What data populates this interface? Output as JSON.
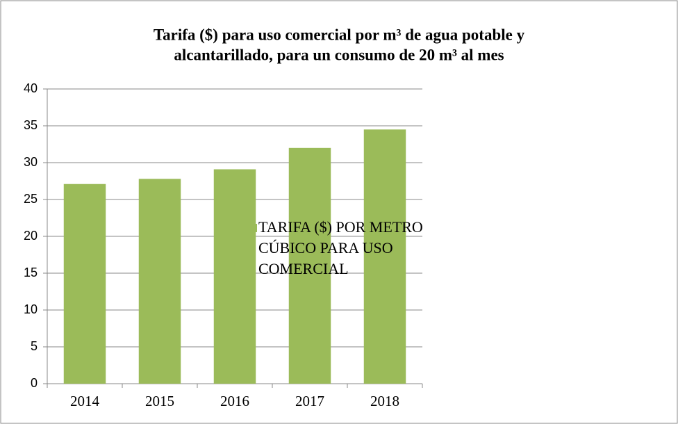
{
  "chart_data": {
    "type": "bar",
    "title": [
      "Tarifa ($) para uso comercial por m³ de agua potable y",
      "alcantarillado, para un consumo de 20 m³ al mes"
    ],
    "categories": [
      "2014",
      "2015",
      "2016",
      "2017",
      "2018"
    ],
    "series": [
      {
        "name": "TARIFA ($) POR METRO CÚBICO PARA USO COMERCIAL",
        "color": "#9bbb59",
        "values": [
          27.1,
          27.8,
          29.1,
          32,
          34.5
        ]
      }
    ],
    "ylim": [
      0,
      40
    ],
    "yticks": [
      0,
      5,
      10,
      15,
      20,
      25,
      30,
      35,
      40
    ],
    "grid": true,
    "legend": "right"
  }
}
